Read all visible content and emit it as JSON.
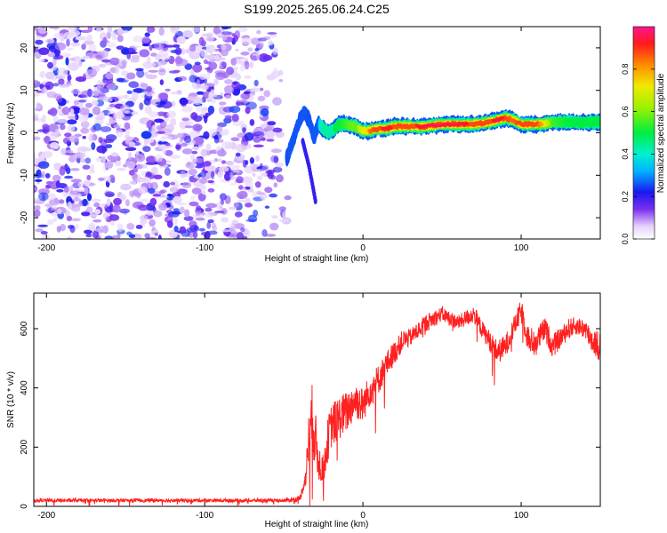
{
  "figure_title": "S199.2025.265.06.24.C25",
  "colors": {
    "snr_line": "#ff2020",
    "blob_dark": "#7a1ef0",
    "blob_light": "#dcc4f8",
    "background": "#ffffff"
  },
  "chart_data": [
    {
      "type": "heatmap",
      "title": "S199.2025.265.06.24.C25",
      "xlabel": "Height of straight line (km)",
      "ylabel": "Frequency (Hz)",
      "xlim": [
        -208,
        150
      ],
      "ylim": [
        -25,
        25
      ],
      "xticks": [
        -200,
        -100,
        0,
        100
      ],
      "yticks": [
        -20,
        -10,
        0,
        10,
        20
      ],
      "colorbar": {
        "label": "Normalized spectral amplitude",
        "range": [
          0.0,
          1.0
        ],
        "ticks": [
          0.0,
          0.2,
          0.4,
          0.6,
          0.8
        ],
        "tick_labels": [
          "0.0",
          "0.2",
          "0.4",
          "0.6",
          "0.8"
        ]
      },
      "noise_region": {
        "x_range": [
          -208,
          -48
        ],
        "freq_range": [
          -25,
          25
        ],
        "amplitude_range": [
          0.05,
          0.25
        ]
      },
      "ridge": {
        "x": [
          -48,
          -40,
          -37,
          -34,
          -31,
          -28,
          -25,
          -22,
          -18,
          -15,
          -10,
          -5,
          0,
          5,
          10,
          15,
          20,
          30,
          40,
          50,
          60,
          70,
          80,
          85,
          90,
          95,
          100,
          110,
          120,
          130,
          140,
          150
        ],
        "freq": [
          -6,
          3,
          5,
          3,
          -1,
          2,
          1,
          0,
          1,
          2,
          2,
          1.5,
          0.5,
          0.5,
          1,
          1,
          1.5,
          1.5,
          1.5,
          2,
          2,
          2,
          2.5,
          3,
          3.5,
          3,
          2,
          2,
          2.5,
          2.5,
          2.5,
          2.5
        ],
        "amplitude": [
          0.25,
          0.3,
          0.3,
          0.25,
          0.3,
          0.35,
          0.45,
          0.45,
          0.5,
          0.5,
          0.55,
          0.6,
          0.7,
          0.85,
          0.9,
          0.95,
          0.9,
          0.9,
          0.95,
          0.95,
          0.95,
          0.9,
          0.9,
          0.95,
          0.9,
          0.85,
          0.9,
          0.9,
          0.55,
          0.5,
          0.5,
          0.5
        ]
      },
      "side_streak": {
        "x": [
          -38,
          -34,
          -32,
          -30
        ],
        "freq": [
          -2,
          -8,
          -12,
          -16
        ]
      }
    },
    {
      "type": "line",
      "title": "",
      "xlabel": "Height of straight line (km)",
      "ylabel": "SNR (10 * v/v)",
      "xlim": [
        -208,
        150
      ],
      "ylim": [
        0,
        720
      ],
      "xticks": [
        -200,
        -100,
        0,
        100
      ],
      "yticks": [
        0,
        200,
        400,
        600
      ],
      "series": [
        {
          "name": "SNR",
          "x": [
            -208,
            -50,
            -40,
            -36,
            -34,
            -32,
            -30,
            -28,
            -25,
            -22,
            -20,
            -15,
            -10,
            -5,
            0,
            5,
            10,
            15,
            20,
            25,
            30,
            40,
            50,
            60,
            70,
            75,
            80,
            85,
            90,
            95,
            100,
            105,
            110,
            115,
            120,
            125,
            130,
            135,
            140,
            145,
            150
          ],
          "y": [
            20,
            20,
            25,
            100,
            250,
            300,
            220,
            150,
            120,
            230,
            270,
            300,
            320,
            360,
            340,
            400,
            430,
            480,
            520,
            560,
            570,
            620,
            650,
            620,
            650,
            600,
            560,
            520,
            540,
            600,
            660,
            560,
            560,
            600,
            540,
            570,
            600,
            610,
            600,
            560,
            540
          ],
          "spread": [
            12,
            12,
            20,
            60,
            220,
            240,
            200,
            130,
            100,
            150,
            150,
            150,
            140,
            130,
            120,
            110,
            100,
            90,
            80,
            70,
            60,
            60,
            50,
            50,
            60,
            60,
            70,
            80,
            80,
            70,
            80,
            90,
            90,
            80,
            80,
            70,
            70,
            60,
            70,
            90,
            100
          ]
        }
      ]
    }
  ]
}
